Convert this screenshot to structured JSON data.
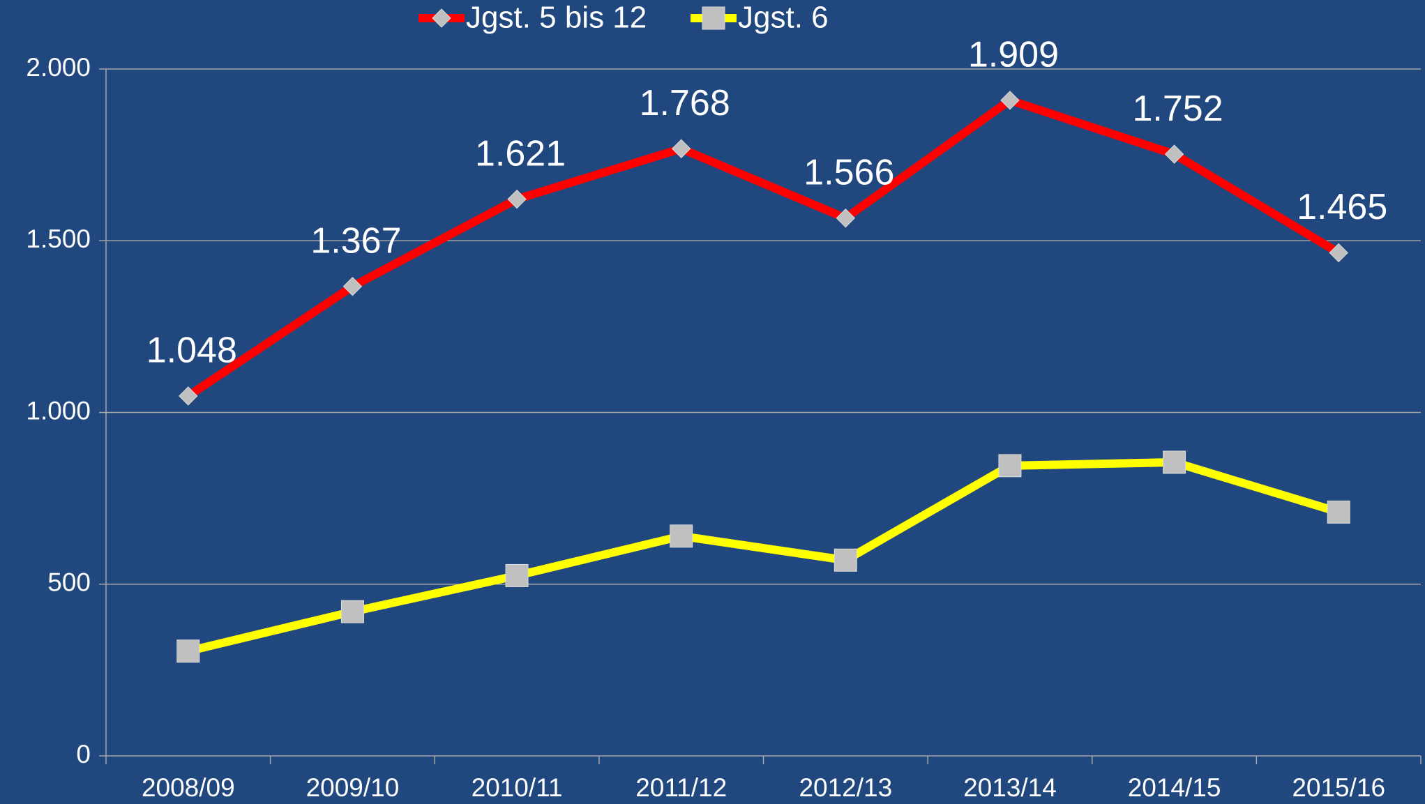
{
  "chart_data": {
    "type": "line",
    "categories": [
      "2008/09",
      "2009/10",
      "2010/11",
      "2011/12",
      "2012/13",
      "2013/14",
      "2014/15",
      "2015/16"
    ],
    "series": [
      {
        "name": "Jgst. 5 bis 12",
        "color": "#ff0000",
        "marker": "diamond",
        "values": [
          1048,
          1367,
          1621,
          1768,
          1566,
          1909,
          1752,
          1465
        ],
        "value_labels": [
          "1.048",
          "1.367",
          "1.621",
          "1.768",
          "1.566",
          "1.909",
          "1.752",
          "1.465"
        ]
      },
      {
        "name": "Jgst. 6",
        "color": "#ffff00",
        "marker": "square",
        "values": [
          305,
          420,
          525,
          640,
          570,
          845,
          855,
          710
        ]
      }
    ],
    "ylim": [
      0,
      2000
    ],
    "yticks": [
      0,
      500,
      {
        "value": 1000,
        "label": "1.000"
      },
      {
        "value": 1500,
        "label": "1.500"
      },
      {
        "value": 2000,
        "label": "2.000"
      }
    ],
    "grid": true,
    "legend": "top"
  }
}
